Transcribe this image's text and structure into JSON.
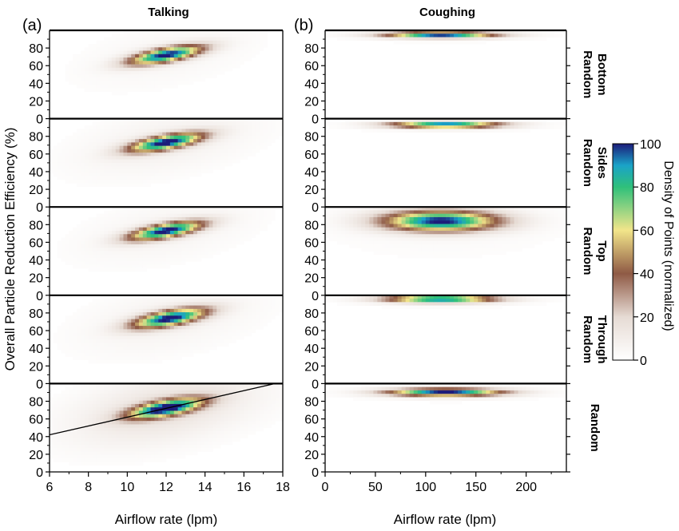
{
  "chart_data": [
    {
      "panel_label": "(a)",
      "title": "Talking",
      "type": "heatmap",
      "xlabel": "Airflow rate (lpm)",
      "ylabel": "Overall Particle Reduction Efficiency (%)",
      "xlim": [
        6,
        18
      ],
      "ylim": [
        0,
        100
      ],
      "xticks": [
        "6",
        "8",
        "10",
        "12",
        "14",
        "16",
        "18"
      ],
      "yticks": [
        "0",
        "20",
        "40",
        "60",
        "80"
      ],
      "rows": [
        {
          "name": "Random Bottom",
          "cx": 12.0,
          "cy": 72,
          "sx": 1.3,
          "sy": 5.5,
          "slope": 3.8,
          "bg": 0.05
        },
        {
          "name": "Random Sides",
          "cx": 12.0,
          "cy": 73,
          "sx": 1.3,
          "sy": 5.5,
          "slope": 3.8,
          "bg": 0.08
        },
        {
          "name": "Random Top",
          "cx": 12.0,
          "cy": 73,
          "sx": 1.3,
          "sy": 5.5,
          "slope": 3.8,
          "bg": 0.06
        },
        {
          "name": "Random Through",
          "cx": 12.2,
          "cy": 74,
          "sx": 1.3,
          "sy": 6.0,
          "slope": 3.8,
          "bg": 0.07
        },
        {
          "name": "Random",
          "cx": 12.0,
          "cy": 72,
          "sx": 1.3,
          "sy": 6.0,
          "slope": 3.8,
          "bg": 0.16
        }
      ],
      "fit_line": {
        "x": [
          6,
          17.6
        ],
        "y": [
          42,
          100
        ]
      }
    },
    {
      "panel_label": "(b)",
      "title": "Coughing",
      "type": "heatmap",
      "xlabel": "Airflow rate (lpm)",
      "xlim": [
        0,
        240
      ],
      "ylim": [
        0,
        100
      ],
      "xticks": [
        "0",
        "50",
        "100",
        "150",
        "200"
      ],
      "yticks": [
        "0",
        "20",
        "40",
        "60",
        "80"
      ],
      "rows": [
        {
          "name": "Random Bottom",
          "cx": 115,
          "cy": 95,
          "sx": 38,
          "sy": 2.5,
          "slope": 0,
          "bg": 0.02
        },
        {
          "name": "Random Sides",
          "cx": 120,
          "cy": 93,
          "sx": 38,
          "sy": 2.5,
          "slope": 0,
          "bg": 0.02
        },
        {
          "name": "Random Top",
          "cx": 115,
          "cy": 84,
          "sx": 40,
          "sy": 8,
          "slope": 0,
          "bg": 0.03
        },
        {
          "name": "Random Through",
          "cx": 115,
          "cy": 96,
          "sx": 38,
          "sy": 3,
          "slope": 0,
          "bg": 0.02
        },
        {
          "name": "Random",
          "cx": 120,
          "cy": 90,
          "sx": 40,
          "sy": 3,
          "slope": 0,
          "bg": 0.02
        }
      ]
    }
  ],
  "row_labels": [
    [
      "Random",
      "Bottom"
    ],
    [
      "Random",
      "Sides"
    ],
    [
      "Random",
      "Top"
    ],
    [
      "Random",
      "Through"
    ],
    [
      "Random"
    ]
  ],
  "colorbar": {
    "label": "Density of Points (normalized)",
    "range": [
      0,
      100
    ],
    "ticks": [
      "0",
      "20",
      "40",
      "60",
      "80",
      "100"
    ],
    "colors": [
      [
        0,
        "#ffffff"
      ],
      [
        20,
        "#e6dbd4"
      ],
      [
        40,
        "#8f5a45"
      ],
      [
        60,
        "#f2e58a"
      ],
      [
        80,
        "#2fc07a"
      ],
      [
        90,
        "#1aa3c8"
      ],
      [
        100,
        "#1c1c7a"
      ]
    ]
  }
}
